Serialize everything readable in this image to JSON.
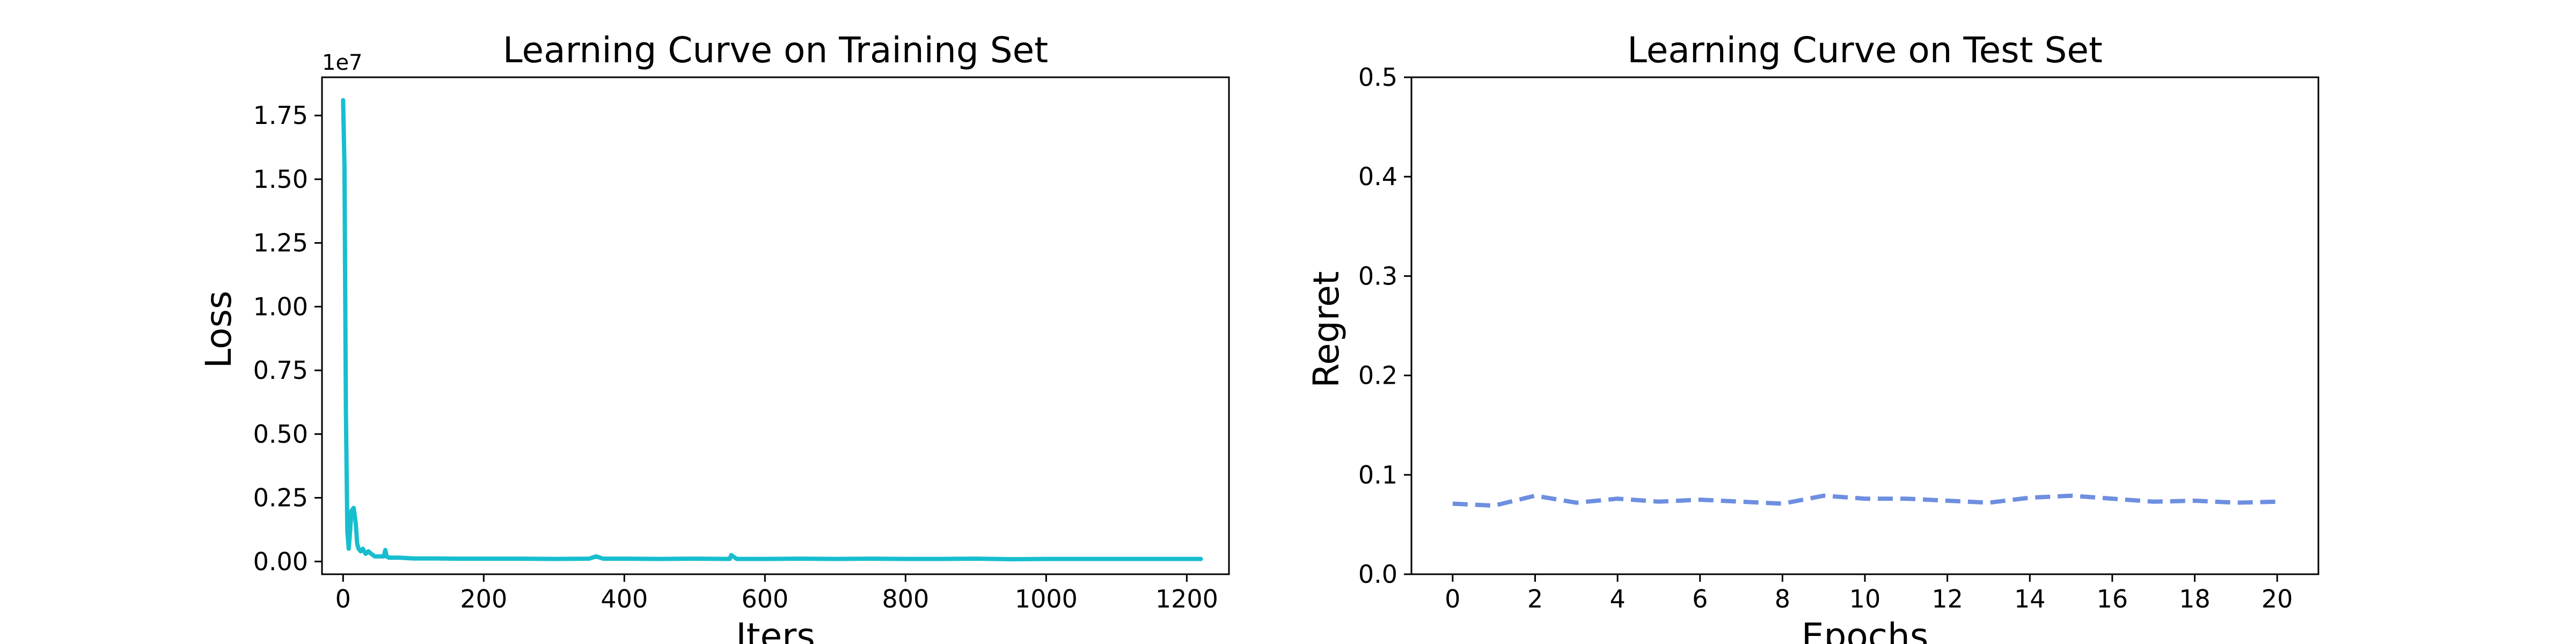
{
  "chart_data": [
    {
      "type": "line",
      "title": "Learning Curve on Training Set",
      "xlabel": "Iters",
      "ylabel": "Loss",
      "y_offset_label": "1e7",
      "xlim": [
        -30,
        1260
      ],
      "ylim": [
        -0.05,
        1.9
      ],
      "xticks": [
        0,
        200,
        400,
        600,
        800,
        1000,
        1200
      ],
      "yticks": [
        0.0,
        0.25,
        0.5,
        0.75,
        1.0,
        1.25,
        1.5,
        1.75
      ],
      "xtick_labels": [
        "0",
        "200",
        "400",
        "600",
        "800",
        "1000",
        "1200"
      ],
      "ytick_labels": [
        "0.00",
        "0.25",
        "0.50",
        "0.75",
        "1.00",
        "1.25",
        "1.50",
        "1.75"
      ],
      "color": "#17becf",
      "line_style": "solid",
      "grid": false,
      "series": [
        {
          "x": [
            0,
            2,
            4,
            6,
            8,
            10,
            12,
            15,
            18,
            20,
            22,
            25,
            28,
            32,
            36,
            40,
            45,
            50,
            55,
            58,
            60,
            62,
            65,
            70,
            80,
            100,
            130,
            160,
            200,
            250,
            300,
            350,
            360,
            370,
            400,
            450,
            500,
            550,
            552,
            560,
            600,
            650,
            700,
            750,
            800,
            850,
            900,
            950,
            1000,
            1050,
            1100,
            1150,
            1200,
            1220
          ],
          "y": [
            1.81,
            1.55,
            0.6,
            0.12,
            0.05,
            0.12,
            0.2,
            0.21,
            0.15,
            0.07,
            0.05,
            0.04,
            0.05,
            0.03,
            0.04,
            0.03,
            0.02,
            0.02,
            0.02,
            0.02,
            0.045,
            0.02,
            0.015,
            0.015,
            0.015,
            0.012,
            0.012,
            0.011,
            0.011,
            0.011,
            0.01,
            0.011,
            0.02,
            0.011,
            0.011,
            0.01,
            0.011,
            0.01,
            0.025,
            0.01,
            0.01,
            0.011,
            0.01,
            0.011,
            0.01,
            0.01,
            0.011,
            0.009,
            0.01,
            0.01,
            0.01,
            0.01,
            0.01,
            0.01
          ]
        }
      ]
    },
    {
      "type": "line",
      "title": "Learning Curve on Test Set",
      "xlabel": "Epochs",
      "ylabel": "Regret",
      "xlim": [
        -1,
        21
      ],
      "ylim": [
        0.0,
        0.5
      ],
      "xticks": [
        0,
        2,
        4,
        6,
        8,
        10,
        12,
        14,
        16,
        18,
        20
      ],
      "yticks": [
        0.0,
        0.1,
        0.2,
        0.3,
        0.4,
        0.5
      ],
      "xtick_labels": [
        "0",
        "2",
        "4",
        "6",
        "8",
        "10",
        "12",
        "14",
        "16",
        "18",
        "20"
      ],
      "ytick_labels": [
        "0.0",
        "0.1",
        "0.2",
        "0.3",
        "0.4",
        "0.5"
      ],
      "color": "#6e8fe0",
      "line_style": "dashed",
      "grid": false,
      "series": [
        {
          "x": [
            0,
            1,
            2,
            3,
            4,
            5,
            6,
            7,
            8,
            9,
            10,
            11,
            12,
            13,
            14,
            15,
            16,
            17,
            18,
            19,
            20
          ],
          "y": [
            0.071,
            0.069,
            0.079,
            0.072,
            0.076,
            0.073,
            0.075,
            0.073,
            0.071,
            0.079,
            0.076,
            0.076,
            0.074,
            0.072,
            0.077,
            0.079,
            0.076,
            0.073,
            0.074,
            0.072,
            0.073
          ]
        }
      ]
    }
  ]
}
